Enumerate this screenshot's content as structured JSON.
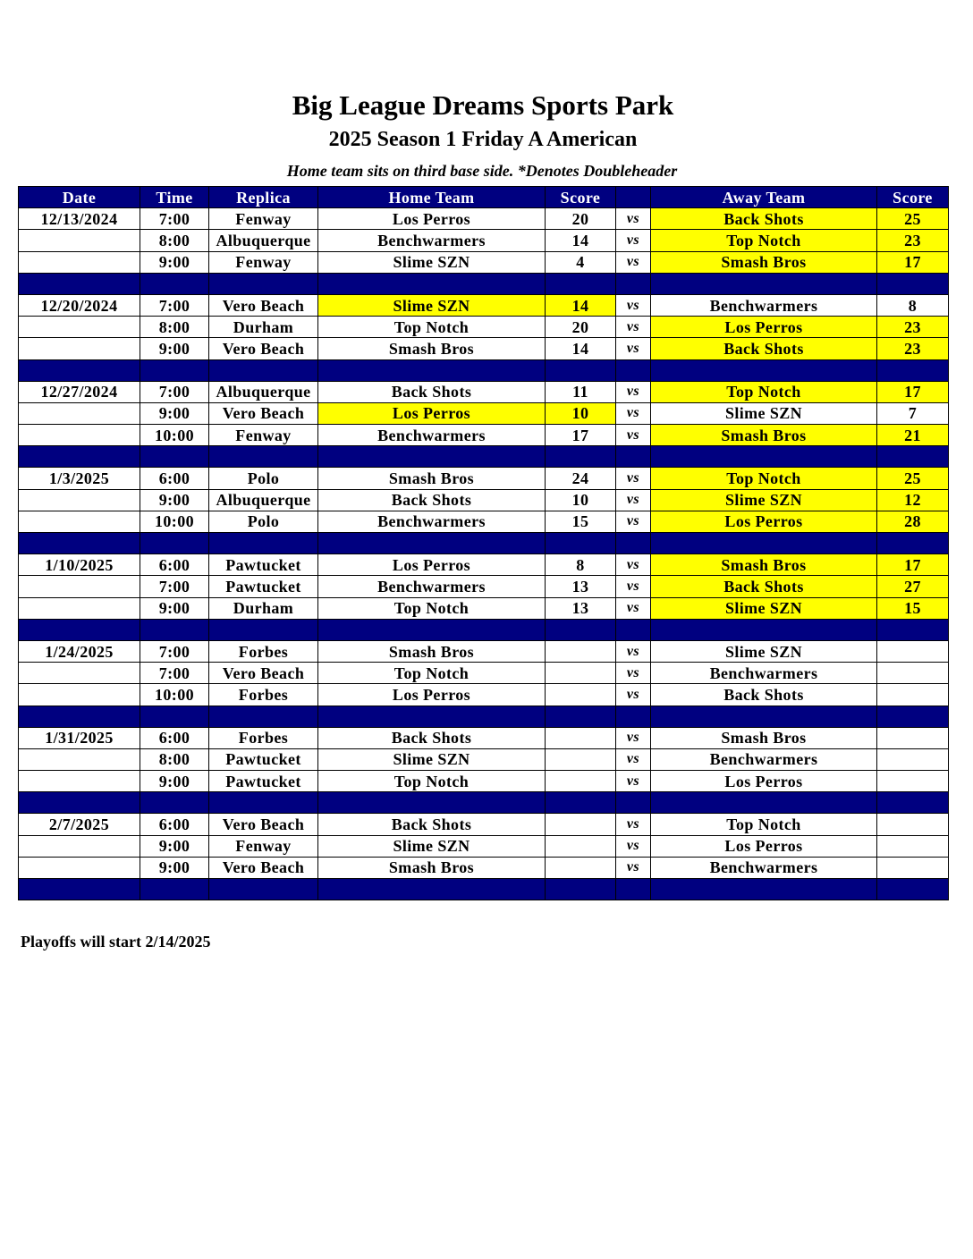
{
  "title": "Big League Dreams Sports Park",
  "subtitle": "2025 Season 1 Friday A American",
  "note": "Home team sits on third base side.  *Denotes Doubleheader",
  "colors": {
    "header_bg": "#000080",
    "winner_highlight": "#ffff00"
  },
  "columns": [
    "Date",
    "Time",
    "Replica",
    "Home Team",
    "Score",
    "",
    "Away Team",
    "Score"
  ],
  "vs_label": "vs",
  "weeks": [
    {
      "date": "12/13/2024",
      "games": [
        {
          "time": "7:00",
          "replica": "Fenway",
          "home": "Los Perros",
          "home_score": "20",
          "away": "Back Shots",
          "away_score": "25",
          "winner": "away"
        },
        {
          "time": "8:00",
          "replica": "Albuquerque",
          "home": "Benchwarmers",
          "home_score": "14",
          "away": "Top Notch",
          "away_score": "23",
          "winner": "away"
        },
        {
          "time": "9:00",
          "replica": "Fenway",
          "home": "Slime SZN",
          "home_score": "4",
          "away": "Smash Bros",
          "away_score": "17",
          "winner": "away"
        }
      ]
    },
    {
      "date": "12/20/2024",
      "games": [
        {
          "time": "7:00",
          "replica": "Vero Beach",
          "home": "Slime SZN",
          "home_score": "14",
          "away": "Benchwarmers",
          "away_score": "8",
          "winner": "home"
        },
        {
          "time": "8:00",
          "replica": "Durham",
          "home": "Top Notch",
          "home_score": "20",
          "away": "Los Perros",
          "away_score": "23",
          "winner": "away"
        },
        {
          "time": "9:00",
          "replica": "Vero Beach",
          "home": "Smash Bros",
          "home_score": "14",
          "away": "Back Shots",
          "away_score": "23",
          "winner": "away"
        }
      ]
    },
    {
      "date": "12/27/2024",
      "games": [
        {
          "time": "7:00",
          "replica": "Albuquerque",
          "home": "Back Shots",
          "home_score": "11",
          "away": "Top Notch",
          "away_score": "17",
          "winner": "away"
        },
        {
          "time": "9:00",
          "replica": "Vero Beach",
          "home": "Los Perros",
          "home_score": "10",
          "away": "Slime SZN",
          "away_score": "7",
          "winner": "home"
        },
        {
          "time": "10:00",
          "replica": "Fenway",
          "home": "Benchwarmers",
          "home_score": "17",
          "away": "Smash Bros",
          "away_score": "21",
          "winner": "away"
        }
      ]
    },
    {
      "date": "1/3/2025",
      "games": [
        {
          "time": "6:00",
          "replica": "Polo",
          "home": "Smash Bros",
          "home_score": "24",
          "away": "Top Notch",
          "away_score": "25",
          "winner": "away"
        },
        {
          "time": "9:00",
          "replica": "Albuquerque",
          "home": "Back Shots",
          "home_score": "10",
          "away": "Slime SZN",
          "away_score": "12",
          "winner": "away"
        },
        {
          "time": "10:00",
          "replica": "Polo",
          "home": "Benchwarmers",
          "home_score": "15",
          "away": "Los Perros",
          "away_score": "28",
          "winner": "away"
        }
      ]
    },
    {
      "date": "1/10/2025",
      "games": [
        {
          "time": "6:00",
          "replica": "Pawtucket",
          "home": "Los Perros",
          "home_score": "8",
          "away": "Smash Bros",
          "away_score": "17",
          "winner": "away"
        },
        {
          "time": "7:00",
          "replica": "Pawtucket",
          "home": "Benchwarmers",
          "home_score": "13",
          "away": "Back Shots",
          "away_score": "27",
          "winner": "away"
        },
        {
          "time": "9:00",
          "replica": "Durham",
          "home": "Top Notch",
          "home_score": "13",
          "away": "Slime SZN",
          "away_score": "15",
          "winner": "away"
        }
      ]
    },
    {
      "date": "1/24/2025",
      "games": [
        {
          "time": "7:00",
          "replica": "Forbes",
          "home": "Smash Bros",
          "home_score": "",
          "away": "Slime SZN",
          "away_score": "",
          "winner": ""
        },
        {
          "time": "7:00",
          "replica": "Vero Beach",
          "home": "Top Notch",
          "home_score": "",
          "away": "Benchwarmers",
          "away_score": "",
          "winner": ""
        },
        {
          "time": "10:00",
          "replica": "Forbes",
          "home": "Los Perros",
          "home_score": "",
          "away": "Back Shots",
          "away_score": "",
          "winner": ""
        }
      ]
    },
    {
      "date": "1/31/2025",
      "games": [
        {
          "time": "6:00",
          "replica": "Forbes",
          "home": "Back Shots",
          "home_score": "",
          "away": "Smash Bros",
          "away_score": "",
          "winner": ""
        },
        {
          "time": "8:00",
          "replica": "Pawtucket",
          "home": "Slime SZN",
          "home_score": "",
          "away": "Benchwarmers",
          "away_score": "",
          "winner": ""
        },
        {
          "time": "9:00",
          "replica": "Pawtucket",
          "home": "Top Notch",
          "home_score": "",
          "away": "Los Perros",
          "away_score": "",
          "winner": ""
        }
      ]
    },
    {
      "date": "2/7/2025",
      "games": [
        {
          "time": "6:00",
          "replica": "Vero Beach",
          "home": "Back Shots",
          "home_score": "",
          "away": "Top Notch",
          "away_score": "",
          "winner": ""
        },
        {
          "time": "9:00",
          "replica": "Fenway",
          "home": "Slime SZN",
          "home_score": "",
          "away": "Los Perros",
          "away_score": "",
          "winner": ""
        },
        {
          "time": "9:00",
          "replica": "Vero Beach",
          "home": "Smash Bros",
          "home_score": "",
          "away": "Benchwarmers",
          "away_score": "",
          "winner": ""
        }
      ]
    }
  ],
  "footer": "Playoffs will start 2/14/2025"
}
